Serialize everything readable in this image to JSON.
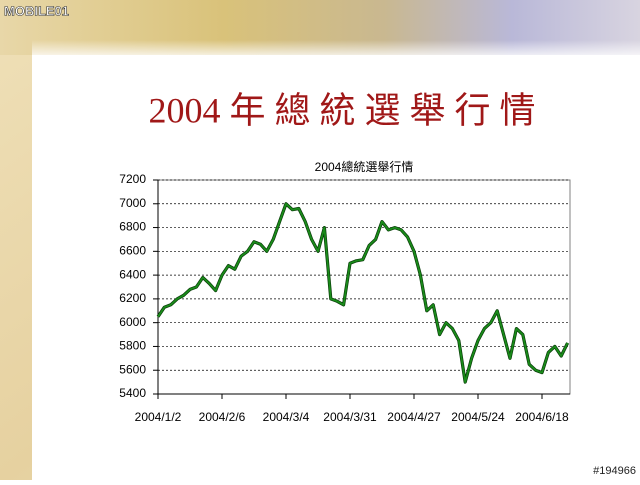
{
  "logo": "MOBILE01",
  "watermark": "#194966",
  "slide_title": "2004 年 總 統 選 舉 行 情",
  "chart_data": {
    "type": "line",
    "title": "2004總統選舉行情",
    "categories": [
      "2004/1/2",
      null,
      null,
      null,
      null,
      null,
      null,
      null,
      null,
      null,
      "2004/2/6",
      null,
      null,
      null,
      null,
      null,
      null,
      null,
      null,
      null,
      "2004/3/4",
      null,
      null,
      null,
      null,
      null,
      null,
      null,
      null,
      null,
      "2004/3/31",
      null,
      null,
      null,
      null,
      null,
      null,
      null,
      null,
      null,
      "2004/4/27",
      null,
      null,
      null,
      null,
      null,
      null,
      null,
      null,
      null,
      "2004/5/24",
      null,
      null,
      null,
      null,
      null,
      null,
      null,
      null,
      null,
      "2004/6/18",
      null,
      null,
      null,
      null
    ],
    "values": [
      6050,
      6130,
      6150,
      6200,
      6230,
      6280,
      6300,
      6380,
      6330,
      6270,
      6400,
      6480,
      6450,
      6560,
      6600,
      6680,
      6660,
      6600,
      6700,
      6850,
      7000,
      6950,
      6960,
      6850,
      6700,
      6600,
      6800,
      6200,
      6180,
      6150,
      6500,
      6520,
      6530,
      6650,
      6700,
      6850,
      6780,
      6800,
      6780,
      6720,
      6600,
      6400,
      6100,
      6150,
      5900,
      6000,
      5950,
      5850,
      5500,
      5700,
      5850,
      5950,
      6000,
      6100,
      5900,
      5700,
      5950,
      5900,
      5650,
      5600,
      5580,
      5750,
      5800,
      5720,
      5830
    ],
    "color": "#1a8c1a",
    "ylim": [
      5400,
      7200
    ],
    "yticks": [
      5400,
      5600,
      5800,
      6000,
      6200,
      6400,
      6600,
      6800,
      7000,
      7200
    ],
    "grid": true
  }
}
